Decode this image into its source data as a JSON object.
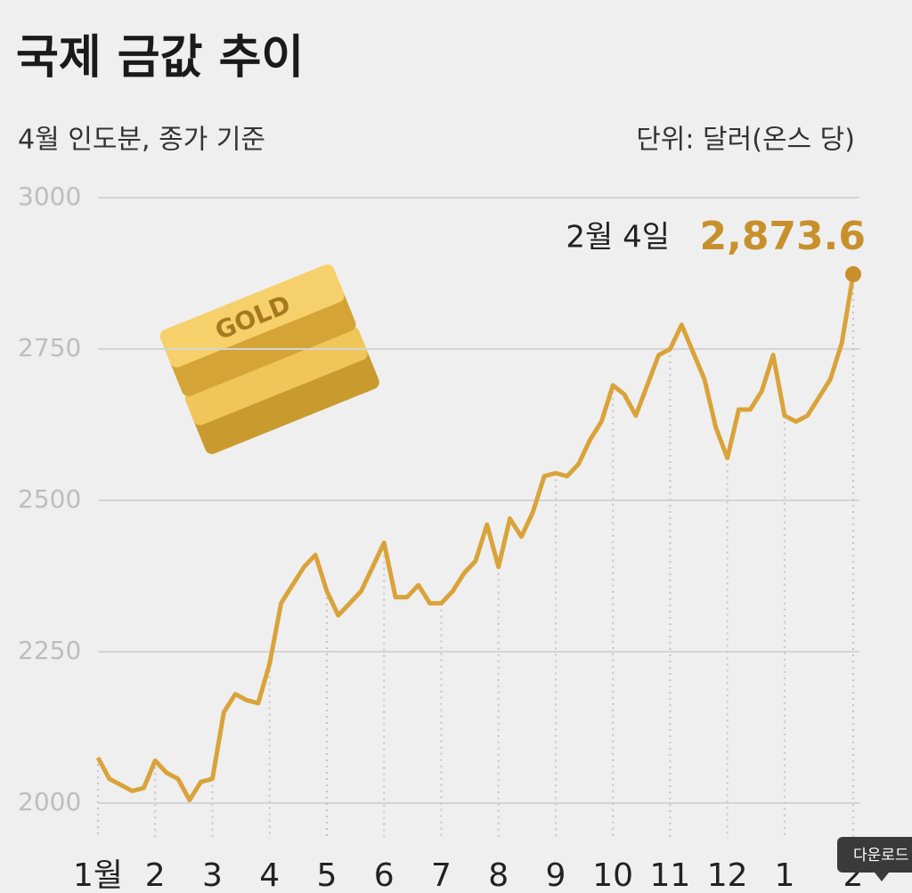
{
  "chart_data": {
    "type": "line",
    "title": "국제 금값 추이",
    "subtitle": "4월 인도분, 종가 기준",
    "unit_label": "단위: 달러(온스 당)",
    "annotation": "2월 4일",
    "illustration_text": "GOLD",
    "download_button": "다운로드",
    "color": "#d9a33a",
    "categories": [
      "1월",
      null,
      null,
      null,
      null,
      "2",
      null,
      null,
      null,
      null,
      "3",
      null,
      null,
      null,
      null,
      "4",
      null,
      null,
      null,
      null,
      "5",
      null,
      null,
      null,
      null,
      "6",
      null,
      null,
      null,
      null,
      "7",
      null,
      null,
      null,
      null,
      "8",
      null,
      null,
      null,
      null,
      "9",
      null,
      null,
      null,
      null,
      "10",
      null,
      null,
      null,
      null,
      "11",
      null,
      null,
      null,
      null,
      "12",
      null,
      null,
      null,
      null,
      "1",
      null,
      null,
      null,
      null,
      null,
      "2"
    ],
    "values": [
      2075,
      2040,
      2030,
      2020,
      2025,
      2070,
      2050,
      2040,
      2005,
      2035,
      2040,
      2150,
      2180,
      2170,
      2165,
      2230,
      2330,
      2360,
      2390,
      2410,
      2350,
      2310,
      2330,
      2350,
      2390,
      2430,
      2340,
      2340,
      2360,
      2330,
      2330,
      2350,
      2380,
      2400,
      2460,
      2390,
      2470,
      2440,
      2480,
      2540,
      2545,
      2540,
      2560,
      2600,
      2630,
      2690,
      2675,
      2640,
      2690,
      2740,
      2750,
      2790,
      2745,
      2700,
      2620,
      2570,
      2650,
      2650,
      2680,
      2740,
      2640,
      2630,
      2640,
      2670,
      2700,
      2760,
      2873.6
    ],
    "value_labels": [
      null,
      null,
      null,
      null,
      null,
      null,
      null,
      null,
      null,
      null,
      null,
      null,
      null,
      null,
      null,
      null,
      null,
      null,
      null,
      null,
      null,
      null,
      null,
      null,
      null,
      null,
      null,
      null,
      null,
      null,
      null,
      null,
      null,
      null,
      null,
      null,
      null,
      null,
      null,
      null,
      null,
      null,
      null,
      null,
      null,
      null,
      null,
      null,
      null,
      null,
      null,
      null,
      null,
      null,
      null,
      null,
      null,
      null,
      null,
      null,
      null,
      null,
      null,
      null,
      null,
      null,
      "2,873.6"
    ],
    "ylim": [
      2000,
      3000
    ],
    "yticks": [
      2000,
      2250,
      2500,
      2750,
      3000
    ],
    "grid": true
  }
}
